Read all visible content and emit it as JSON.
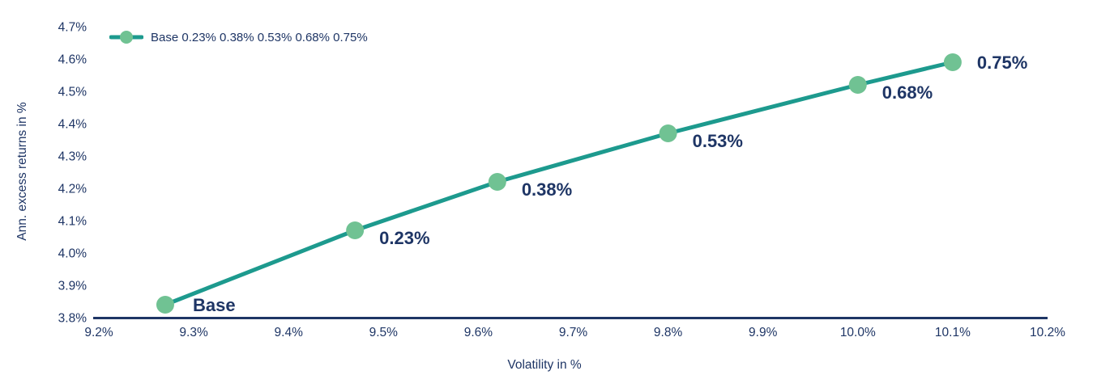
{
  "chart_data": {
    "type": "line",
    "title": "",
    "xlabel": "Volatility in %",
    "ylabel": "Ann. excess returns in %",
    "xlim": [
      9.2,
      10.2
    ],
    "ylim": [
      3.8,
      4.7
    ],
    "x_tick_labels": [
      "9.2%",
      "9.3%",
      "9.4%",
      "9.5%",
      "9.6%",
      "9.7%",
      "9.8%",
      "9.9%",
      "10.0%",
      "10.1%",
      "10.2%"
    ],
    "x_tick_values": [
      9.2,
      9.3,
      9.4,
      9.5,
      9.6,
      9.7,
      9.8,
      9.9,
      10.0,
      10.1,
      10.2
    ],
    "y_tick_labels": [
      "3.8%",
      "3.9%",
      "4.0%",
      "4.1%",
      "4.2%",
      "4.3%",
      "4.4%",
      "4.5%",
      "4.6%",
      "4.7%"
    ],
    "y_tick_values": [
      3.8,
      3.9,
      4.0,
      4.1,
      4.2,
      4.3,
      4.4,
      4.5,
      4.6,
      4.7
    ],
    "grid": false,
    "legend": {
      "position": "top-left",
      "entries": [
        {
          "label": "Base 0.23% 0.38% 0.53% 0.68% 0.75%",
          "marker": "circle-on-line"
        }
      ]
    },
    "series": [
      {
        "name": "Base 0.23% 0.38% 0.53% 0.68% 0.75%",
        "line_color": "#1d9a8e",
        "marker_color": "#70c293",
        "points": [
          {
            "x": 9.27,
            "y": 3.84,
            "label": "Base"
          },
          {
            "x": 9.47,
            "y": 4.07,
            "label": "0.23%"
          },
          {
            "x": 9.62,
            "y": 4.22,
            "label": "0.38%"
          },
          {
            "x": 9.8,
            "y": 4.37,
            "label": "0.53%"
          },
          {
            "x": 10.0,
            "y": 4.52,
            "label": "0.68%"
          },
          {
            "x": 10.1,
            "y": 4.59,
            "label": "0.75%"
          }
        ]
      }
    ],
    "colors": {
      "axis_line": "#1e3565",
      "text": "#1e3565",
      "background": "#ffffff"
    }
  }
}
